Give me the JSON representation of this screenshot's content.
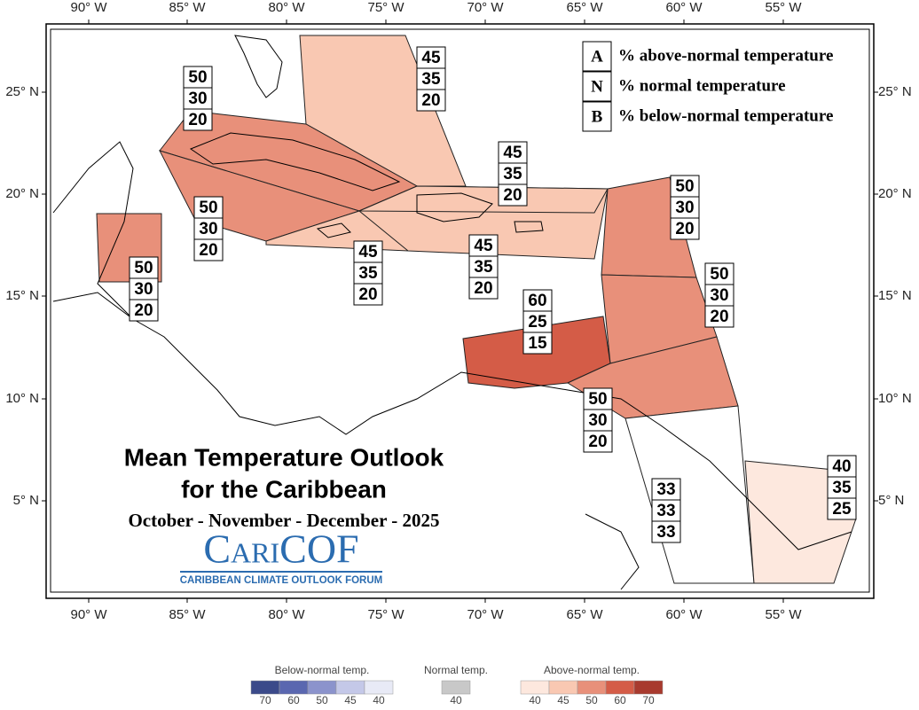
{
  "axes": {
    "lon_labels": [
      "90° W",
      "85° W",
      "80° W",
      "75° W",
      "70° W",
      "65° W",
      "60° W",
      "55° W"
    ],
    "lat_labels": [
      "25° N",
      "20° N",
      "15° N",
      "10° N",
      "5° N"
    ]
  },
  "key": [
    {
      "letter": "A",
      "text": "% above-normal temperature"
    },
    {
      "letter": "N",
      "text": "% normal temperature"
    },
    {
      "letter": "B",
      "text": "% below-normal temperature"
    }
  ],
  "regions": [
    {
      "A": 45,
      "N": 35,
      "B": 20,
      "color": "#f9c8b2"
    },
    {
      "A": 50,
      "N": 30,
      "B": 20,
      "color": "#e8907a"
    },
    {
      "A": 50,
      "N": 30,
      "B": 20,
      "color": "#e8907a"
    },
    {
      "A": 45,
      "N": 35,
      "B": 20,
      "color": "#f9c8b2"
    },
    {
      "A": 45,
      "N": 35,
      "B": 20,
      "color": "#f9c8b2"
    },
    {
      "A": 45,
      "N": 35,
      "B": 20,
      "color": "#f9c8b2"
    },
    {
      "A": 50,
      "N": 30,
      "B": 20,
      "color": "#e8907a"
    },
    {
      "A": 50,
      "N": 30,
      "B": 20,
      "color": "#e8907a"
    },
    {
      "A": 50,
      "N": 30,
      "B": 20,
      "color": "#e8907a"
    },
    {
      "A": 60,
      "N": 25,
      "B": 15,
      "color": "#d45c47"
    },
    {
      "A": 50,
      "N": 30,
      "B": 20,
      "color": "#e8907a"
    },
    {
      "A": 33,
      "N": 33,
      "B": 33,
      "color": "#ffffff"
    },
    {
      "A": 40,
      "N": 35,
      "B": 25,
      "color": "#fde8de"
    }
  ],
  "title": {
    "line1": "Mean Temperature Outlook",
    "line2": "for the Caribbean",
    "period": "October - November - December - 2025"
  },
  "logo": {
    "name": "CariCOF",
    "tagline": "CARIBBEAN CLIMATE OUTLOOK FORUM"
  },
  "color_legend": {
    "below": {
      "title": "Below-normal temp.",
      "levels": [
        {
          "value": 70,
          "color": "#3b4a8a"
        },
        {
          "value": 60,
          "color": "#5a67b0"
        },
        {
          "value": 50,
          "color": "#8b93cc"
        },
        {
          "value": 45,
          "color": "#c4c8e8"
        },
        {
          "value": 40,
          "color": "#e8eaf6"
        }
      ]
    },
    "normal": {
      "title": "Normal temp.",
      "levels": [
        {
          "value": 40,
          "color": "#c8c8c8"
        }
      ]
    },
    "above": {
      "title": "Above-normal temp.",
      "levels": [
        {
          "value": 40,
          "color": "#fde8de"
        },
        {
          "value": 45,
          "color": "#f9c8b2"
        },
        {
          "value": 50,
          "color": "#e8907a"
        },
        {
          "value": 60,
          "color": "#d45c47"
        },
        {
          "value": 70,
          "color": "#a83a2e"
        }
      ]
    }
  }
}
